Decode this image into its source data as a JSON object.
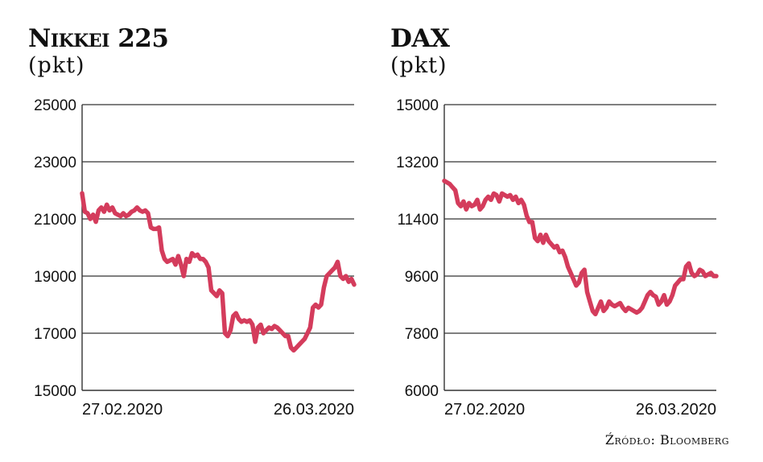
{
  "colors": {
    "line": "#d43c5c",
    "grid": "#333333",
    "text": "#111111"
  },
  "source": "Źródło: Bloomberg",
  "chart_data": [
    {
      "type": "line",
      "title": "Nikkei 225",
      "subtitle": "(pkt)",
      "ylim": [
        15000,
        25000
      ],
      "yticks": [
        15000,
        17000,
        19000,
        21000,
        23000,
        25000
      ],
      "xticks": [
        "27.02.2020",
        "26.03.2020"
      ],
      "grid": true,
      "series": [
        {
          "values": [
            21900,
            21250,
            21200,
            21000,
            21150,
            20900,
            21300,
            21400,
            21250,
            21500,
            21300,
            21400,
            21200,
            21150,
            21100,
            21200,
            21100,
            21150,
            21250,
            21300,
            21400,
            21300,
            21250,
            21300,
            21200,
            20700,
            20650,
            20650,
            20700,
            19900,
            19600,
            19500,
            19550,
            19600,
            19400,
            19700,
            19400,
            19000,
            19600,
            19500,
            19800,
            19700,
            19750,
            19600,
            19600,
            19500,
            19300,
            18500,
            18400,
            18300,
            18500,
            18400,
            17000,
            16900,
            17100,
            17600,
            17700,
            17500,
            17400,
            17450,
            17400,
            17450,
            17300,
            16700,
            17200,
            17300,
            17000,
            17100,
            17200,
            17150,
            17250,
            17200,
            17100,
            17000,
            16900,
            16900,
            16500,
            16400,
            16500,
            16600,
            16700,
            16800,
            17000,
            17200,
            17900,
            18000,
            17900,
            18000,
            18600,
            19000,
            19100,
            19200,
            19300,
            19500,
            19000,
            18900,
            19000,
            18800,
            18900,
            18700
          ]
        }
      ]
    },
    {
      "type": "line",
      "title": "DAX",
      "subtitle": "(pkt)",
      "ylim": [
        6000,
        15000
      ],
      "yticks": [
        6000,
        7800,
        9600,
        11400,
        13200,
        15000
      ],
      "xticks": [
        "27.02.2020",
        "26.03.2020"
      ],
      "grid": true,
      "series": [
        {
          "values": [
            12600,
            12550,
            12500,
            12400,
            12300,
            11900,
            11800,
            11950,
            11700,
            11900,
            11800,
            11850,
            12000,
            11700,
            11800,
            12000,
            12100,
            12000,
            12200,
            12150,
            11950,
            12200,
            12150,
            12100,
            12150,
            12000,
            12100,
            11900,
            12000,
            11850,
            11500,
            11300,
            11300,
            10800,
            10700,
            10900,
            10650,
            10900,
            10700,
            10600,
            10500,
            10550,
            10350,
            10400,
            10200,
            9900,
            9700,
            9500,
            9300,
            9400,
            9700,
            9800,
            9100,
            8800,
            8500,
            8400,
            8600,
            8800,
            8500,
            8600,
            8800,
            8700,
            8650,
            8700,
            8750,
            8600,
            8500,
            8600,
            8550,
            8500,
            8450,
            8500,
            8600,
            8800,
            9000,
            9100,
            9000,
            8950,
            8700,
            8800,
            9000,
            8700,
            8800,
            9000,
            9300,
            9400,
            9500,
            9500,
            9900,
            10000,
            9700,
            9600,
            9650,
            9800,
            9750,
            9600,
            9650,
            9700,
            9600,
            9600
          ]
        }
      ]
    }
  ]
}
